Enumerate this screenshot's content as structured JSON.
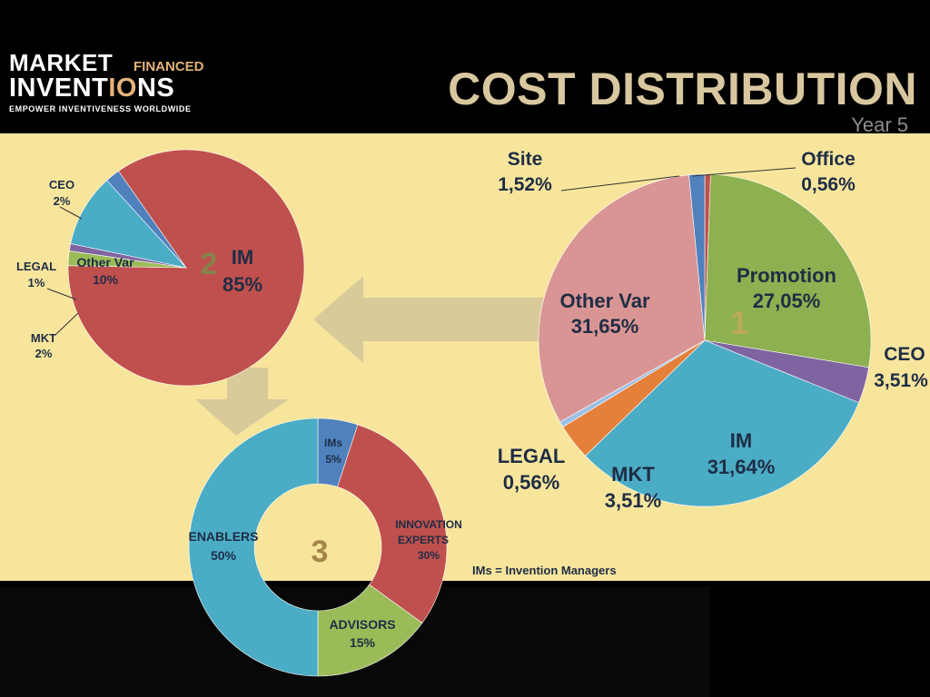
{
  "logo": {
    "line1": "MARKET",
    "financed": "FINANCED",
    "line2_a": "INVENT",
    "line2_b": "I",
    "line2_c": "O",
    "line2_d": "NS",
    "tagline": "EMPOWER INVENTIVENESS WORLDWIDE"
  },
  "title": "COST DISTRIBUTION",
  "subtitle": "Year 5",
  "footnote": "IMs =  Invention Managers",
  "colors": {
    "im": "#c0504d",
    "other_var": "#4bacc6",
    "ceo": "#4f81bd",
    "legal": "#8064a2",
    "mkt": "#9bbb59",
    "promotion": "#8db050",
    "other_var_big": "#d99594",
    "mkt_big": "#e5803a",
    "legal_big": "#9cc0e6",
    "title": "#d9c79f",
    "panel": "#f7e59c"
  },
  "chart_data": [
    {
      "type": "pie",
      "badge": "1",
      "slices": [
        {
          "label": "Office",
          "value": 0.56,
          "value_text": "0,56%"
        },
        {
          "label": "Promotion",
          "value": 27.05,
          "value_text": "27,05%"
        },
        {
          "label": "CEO",
          "value": 3.51,
          "value_text": "3,51%"
        },
        {
          "label": "IM",
          "value": 31.64,
          "value_text": "31,64%"
        },
        {
          "label": "MKT",
          "value": 3.51,
          "value_text": "3,51%"
        },
        {
          "label": "LEGAL",
          "value": 0.56,
          "value_text": "0,56%"
        },
        {
          "label": "Other Var",
          "value": 31.65,
          "value_text": "31,65%"
        },
        {
          "label": "Site",
          "value": 1.52,
          "value_text": "1,52%"
        }
      ]
    },
    {
      "type": "pie",
      "badge": "2",
      "slices": [
        {
          "label": "IM",
          "value": 85,
          "value_text": "85%"
        },
        {
          "label": "MKT",
          "value": 2,
          "value_text": "2%"
        },
        {
          "label": "LEGAL",
          "value": 1,
          "value_text": "1%"
        },
        {
          "label": "Other Var",
          "value": 10,
          "value_text": "10%"
        },
        {
          "label": "CEO",
          "value": 2,
          "value_text": "2%"
        }
      ]
    },
    {
      "type": "donut",
      "badge": "3",
      "slices": [
        {
          "label": "IMs",
          "value": 5,
          "value_text": "5%"
        },
        {
          "label": "INNOVATION EXPERTS",
          "value": 30,
          "value_text": "30%"
        },
        {
          "label": "ADVISORS",
          "value": 15,
          "value_text": "15%"
        },
        {
          "label": "ENABLERS",
          "value": 50,
          "value_text": "50%"
        }
      ]
    }
  ]
}
